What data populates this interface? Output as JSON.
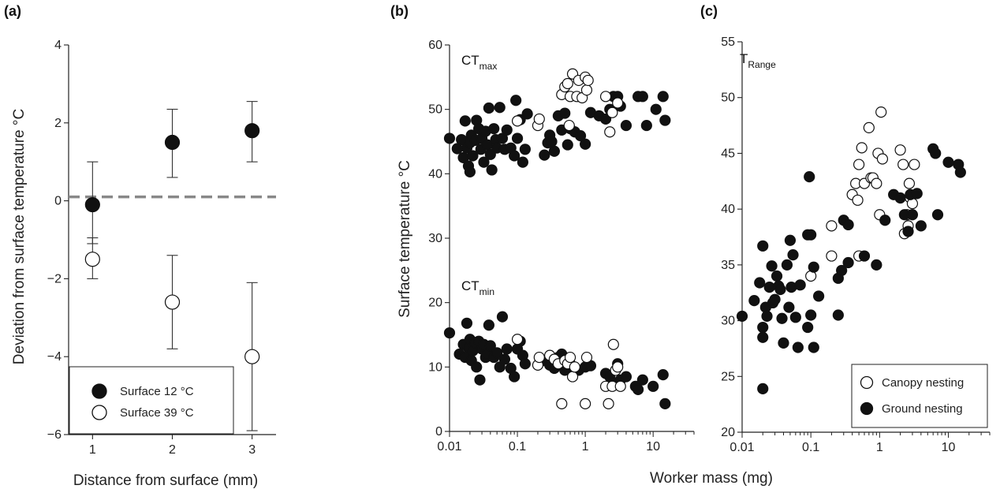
{
  "figure": {
    "shared_xlabel": "Worker mass (mg)"
  },
  "chart_data": [
    {
      "type": "scatter",
      "panel_label": "(a)",
      "xlabel": "Distance from surface (mm)",
      "ylabel": "Deviation from surface temperature °C",
      "xlim": [
        0.7,
        3.3
      ],
      "ylim": [
        -6,
        4
      ],
      "x_ticks": [
        "1",
        "2",
        "3"
      ],
      "y_ticks": [
        "−6",
        "−4",
        "−2",
        "0",
        "2",
        "4"
      ],
      "reference_line": 0.1,
      "legend": {
        "placement": "bottom-left"
      },
      "series": [
        {
          "name": "Surface 12 °C",
          "marker": "filled",
          "points": [
            {
              "x": 1,
              "y": -0.1,
              "err_low": -1.1,
              "err_high": 1.0
            },
            {
              "x": 2,
              "y": 1.5,
              "err_low": 0.6,
              "err_high": 2.35
            },
            {
              "x": 3,
              "y": 1.8,
              "err_low": 1.0,
              "err_high": 2.55
            }
          ]
        },
        {
          "name": "Surface 39 °C",
          "marker": "open",
          "points": [
            {
              "x": 1,
              "y": -1.5,
              "err_low": -2.0,
              "err_high": -0.95
            },
            {
              "x": 2,
              "y": -2.6,
              "err_low": -3.8,
              "err_high": -1.4
            },
            {
              "x": 3,
              "y": -4.0,
              "err_low": -5.9,
              "err_high": -2.1
            }
          ]
        }
      ]
    },
    {
      "type": "scatter",
      "panel_label": "(b)",
      "ylabel": "Surface temperature °C",
      "x_scale": "log",
      "xlim": [
        0.01,
        40
      ],
      "ylim": [
        0,
        60
      ],
      "x_ticks": [
        "0.01",
        "0.1",
        "1",
        "10"
      ],
      "y_ticks": [
        "0",
        "10",
        "20",
        "30",
        "40",
        "50",
        "60"
      ],
      "annotations": [
        {
          "text": "CT",
          "subscript": "max"
        },
        {
          "text": "CT",
          "subscript": "min"
        }
      ],
      "series": [
        {
          "name": "Ground nesting",
          "marker": "filled",
          "points": [
            [
              0.01,
              45.5
            ],
            [
              0.013,
              43.9
            ],
            [
              0.015,
              45.3
            ],
            [
              0.016,
              42.5
            ],
            [
              0.017,
              48.2
            ],
            [
              0.018,
              44.0
            ],
            [
              0.019,
              41.2
            ],
            [
              0.02,
              40.3
            ],
            [
              0.02,
              44.8
            ],
            [
              0.021,
              46.0
            ],
            [
              0.022,
              42.8
            ],
            [
              0.024,
              45.2
            ],
            [
              0.025,
              48.3
            ],
            [
              0.027,
              47.0
            ],
            [
              0.029,
              43.8
            ],
            [
              0.03,
              45.5
            ],
            [
              0.032,
              41.8
            ],
            [
              0.034,
              46.6
            ],
            [
              0.036,
              44.5
            ],
            [
              0.038,
              50.2
            ],
            [
              0.04,
              43.0
            ],
            [
              0.042,
              40.6
            ],
            [
              0.045,
              47.0
            ],
            [
              0.048,
              45.3
            ],
            [
              0.05,
              44.0
            ],
            [
              0.055,
              50.3
            ],
            [
              0.06,
              45.5
            ],
            [
              0.065,
              43.8
            ],
            [
              0.07,
              46.8
            ],
            [
              0.08,
              44.0
            ],
            [
              0.09,
              42.8
            ],
            [
              0.095,
              51.4
            ],
            [
              0.1,
              45.5
            ],
            [
              0.11,
              48.4
            ],
            [
              0.12,
              41.8
            ],
            [
              0.13,
              43.8
            ],
            [
              0.14,
              49.3
            ],
            [
              0.25,
              42.9
            ],
            [
              0.28,
              44.8
            ],
            [
              0.3,
              46.0
            ],
            [
              0.32,
              45.0
            ],
            [
              0.35,
              43.5
            ],
            [
              0.4,
              49.0
            ],
            [
              0.45,
              46.8
            ],
            [
              0.5,
              49.4
            ],
            [
              0.55,
              44.5
            ],
            [
              0.6,
              47.0
            ],
            [
              0.7,
              46.5
            ],
            [
              0.85,
              45.9
            ],
            [
              1.0,
              44.6
            ],
            [
              1.2,
              49.5
            ],
            [
              1.6,
              49.0
            ],
            [
              2.0,
              48.5
            ],
            [
              2.3,
              50.0
            ],
            [
              2.6,
              52.0
            ],
            [
              3.0,
              52.0
            ],
            [
              3.3,
              50.5
            ],
            [
              4.0,
              47.5
            ],
            [
              6.0,
              52.0
            ],
            [
              7.0,
              52.0
            ],
            [
              8.0,
              47.5
            ],
            [
              11,
              50.0
            ],
            [
              14,
              52.0
            ],
            [
              15,
              48.3
            ],
            [
              0.01,
              15.3
            ],
            [
              0.014,
              12.0
            ],
            [
              0.016,
              13.5
            ],
            [
              0.017,
              11.5
            ],
            [
              0.018,
              16.8
            ],
            [
              0.019,
              13.0
            ],
            [
              0.02,
              14.3
            ],
            [
              0.021,
              11.0
            ],
            [
              0.022,
              12.5
            ],
            [
              0.024,
              13.8
            ],
            [
              0.025,
              10.0
            ],
            [
              0.027,
              14.0
            ],
            [
              0.028,
              8.0
            ],
            [
              0.03,
              12.8
            ],
            [
              0.032,
              13.5
            ],
            [
              0.034,
              11.5
            ],
            [
              0.036,
              12.0
            ],
            [
              0.038,
              16.5
            ],
            [
              0.04,
              13.3
            ],
            [
              0.045,
              11.5
            ],
            [
              0.05,
              12.2
            ],
            [
              0.055,
              10.0
            ],
            [
              0.06,
              17.8
            ],
            [
              0.065,
              11.2
            ],
            [
              0.07,
              12.8
            ],
            [
              0.08,
              9.8
            ],
            [
              0.09,
              8.5
            ],
            [
              0.1,
              12.8
            ],
            [
              0.11,
              14.0
            ],
            [
              0.12,
              11.8
            ],
            [
              0.13,
              10.5
            ],
            [
              0.25,
              11.0
            ],
            [
              0.3,
              10.3
            ],
            [
              0.35,
              9.8
            ],
            [
              0.4,
              11.5
            ],
            [
              0.45,
              12.0
            ],
            [
              0.5,
              9.5
            ],
            [
              0.55,
              11.0
            ],
            [
              0.6,
              10.5
            ],
            [
              0.7,
              9.8
            ],
            [
              0.8,
              9.5
            ],
            [
              1.0,
              10.0
            ],
            [
              1.2,
              10.2
            ],
            [
              2.0,
              9.0
            ],
            [
              2.3,
              8.5
            ],
            [
              2.6,
              7.5
            ],
            [
              3.0,
              10.5
            ],
            [
              3.3,
              8.0
            ],
            [
              4.0,
              8.5
            ],
            [
              5.5,
              7.0
            ],
            [
              6.0,
              6.5
            ],
            [
              7.0,
              8.0
            ],
            [
              10,
              7.0
            ],
            [
              14,
              8.8
            ],
            [
              15,
              4.3
            ]
          ]
        },
        {
          "name": "Canopy nesting",
          "marker": "open",
          "points": [
            [
              0.1,
              48.2
            ],
            [
              0.2,
              47.5
            ],
            [
              0.21,
              48.5
            ],
            [
              0.45,
              52.3
            ],
            [
              0.5,
              53.5
            ],
            [
              0.55,
              54.0
            ],
            [
              0.58,
              47.5
            ],
            [
              0.6,
              52.0
            ],
            [
              0.65,
              55.5
            ],
            [
              0.75,
              52.0
            ],
            [
              0.8,
              54.5
            ],
            [
              0.9,
              51.8
            ],
            [
              1.0,
              55.0
            ],
            [
              1.05,
              53.0
            ],
            [
              1.1,
              54.5
            ],
            [
              2.0,
              52.0
            ],
            [
              2.3,
              46.5
            ],
            [
              2.5,
              49.5
            ],
            [
              3.0,
              51.0
            ],
            [
              0.1,
              14.3
            ],
            [
              0.2,
              10.3
            ],
            [
              0.21,
              11.5
            ],
            [
              0.3,
              11.8
            ],
            [
              0.35,
              11.2
            ],
            [
              0.4,
              10.5
            ],
            [
              0.45,
              4.3
            ],
            [
              0.5,
              11.0
            ],
            [
              0.55,
              10.5
            ],
            [
              0.6,
              11.5
            ],
            [
              0.65,
              8.5
            ],
            [
              0.7,
              10.0
            ],
            [
              1.0,
              4.3
            ],
            [
              1.05,
              11.5
            ],
            [
              2.0,
              7.0
            ],
            [
              2.2,
              4.3
            ],
            [
              2.5,
              7.0
            ],
            [
              2.6,
              13.5
            ],
            [
              2.8,
              9.5
            ],
            [
              3.0,
              10.0
            ],
            [
              3.3,
              7.0
            ]
          ]
        }
      ]
    },
    {
      "type": "scatter",
      "panel_label": "(c)",
      "x_scale": "log",
      "xlim": [
        0.01,
        40
      ],
      "ylim": [
        20,
        55
      ],
      "x_ticks": [
        "0.01",
        "0.1",
        "1",
        "10"
      ],
      "y_ticks": [
        "20",
        "25",
        "30",
        "35",
        "40",
        "45",
        "50",
        "55"
      ],
      "annotations": [
        {
          "text": "T",
          "subscript": "Range"
        }
      ],
      "legend": {
        "placement": "bottom-right"
      },
      "series": [
        {
          "name": "Canopy nesting",
          "marker": "open",
          "points": [
            [
              0.1,
              34.0
            ],
            [
              0.2,
              38.5
            ],
            [
              0.2,
              35.8
            ],
            [
              0.4,
              41.3
            ],
            [
              0.45,
              42.3
            ],
            [
              0.48,
              40.8
            ],
            [
              0.5,
              35.8
            ],
            [
              0.5,
              44.0
            ],
            [
              0.55,
              45.5
            ],
            [
              0.6,
              42.3
            ],
            [
              0.7,
              47.3
            ],
            [
              0.75,
              42.8
            ],
            [
              0.8,
              42.8
            ],
            [
              0.9,
              42.3
            ],
            [
              0.95,
              45.0
            ],
            [
              1.0,
              39.5
            ],
            [
              1.05,
              48.7
            ],
            [
              1.1,
              44.5
            ],
            [
              2.0,
              45.3
            ],
            [
              2.2,
              44.0
            ],
            [
              2.3,
              37.8
            ],
            [
              2.5,
              39.5
            ],
            [
              2.6,
              38.5
            ],
            [
              2.7,
              42.3
            ],
            [
              2.8,
              41.0
            ],
            [
              3.0,
              40.5
            ],
            [
              3.2,
              44.0
            ]
          ]
        },
        {
          "name": "Ground nesting",
          "marker": "filled",
          "points": [
            [
              0.01,
              30.4
            ],
            [
              0.015,
              31.8
            ],
            [
              0.018,
              33.4
            ],
            [
              0.02,
              36.7
            ],
            [
              0.02,
              29.4
            ],
            [
              0.02,
              28.5
            ],
            [
              0.02,
              23.9
            ],
            [
              0.022,
              31.2
            ],
            [
              0.023,
              30.4
            ],
            [
              0.025,
              33.0
            ],
            [
              0.027,
              34.9
            ],
            [
              0.028,
              31.6
            ],
            [
              0.03,
              31.9
            ],
            [
              0.032,
              34.0
            ],
            [
              0.034,
              33.1
            ],
            [
              0.036,
              32.8
            ],
            [
              0.038,
              30.2
            ],
            [
              0.04,
              28.0
            ],
            [
              0.045,
              35.0
            ],
            [
              0.048,
              31.2
            ],
            [
              0.05,
              37.2
            ],
            [
              0.052,
              33.0
            ],
            [
              0.055,
              35.9
            ],
            [
              0.06,
              30.3
            ],
            [
              0.065,
              27.6
            ],
            [
              0.07,
              33.2
            ],
            [
              0.09,
              29.4
            ],
            [
              0.09,
              37.7
            ],
            [
              0.095,
              42.9
            ],
            [
              0.1,
              30.5
            ],
            [
              0.1,
              37.7
            ],
            [
              0.11,
              34.8
            ],
            [
              0.11,
              27.6
            ],
            [
              0.13,
              32.2
            ],
            [
              0.25,
              30.5
            ],
            [
              0.25,
              33.8
            ],
            [
              0.28,
              34.5
            ],
            [
              0.3,
              39.0
            ],
            [
              0.35,
              38.6
            ],
            [
              0.35,
              35.2
            ],
            [
              0.6,
              35.8
            ],
            [
              0.9,
              35.0
            ],
            [
              1.2,
              39.0
            ],
            [
              1.6,
              41.3
            ],
            [
              2.0,
              41.0
            ],
            [
              2.3,
              39.5
            ],
            [
              2.6,
              38.0
            ],
            [
              2.8,
              41.3
            ],
            [
              3.0,
              39.5
            ],
            [
              3.5,
              41.4
            ],
            [
              4.0,
              38.5
            ],
            [
              6.0,
              45.4
            ],
            [
              6.5,
              45.0
            ],
            [
              7.0,
              39.5
            ],
            [
              10,
              44.2
            ],
            [
              14,
              44.0
            ],
            [
              15,
              43.3
            ]
          ]
        }
      ]
    }
  ]
}
